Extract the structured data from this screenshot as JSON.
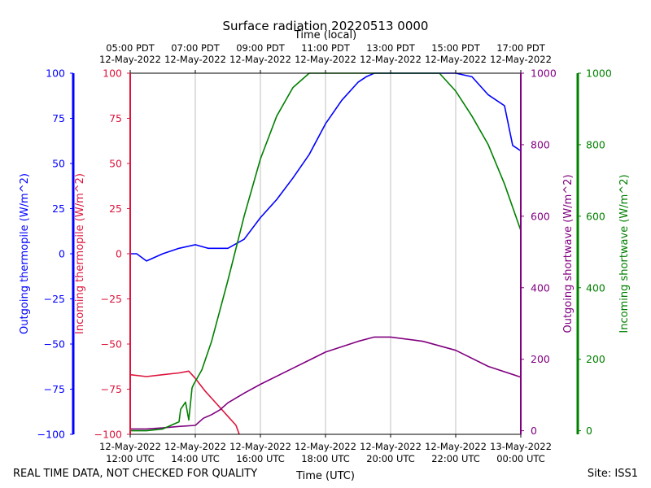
{
  "chart_data": {
    "type": "line",
    "title": "Surface radiation 20220513 0000",
    "top_axis_label": "Time (local)",
    "xlabel": "Time (UTC)",
    "x_unit": "hours UTC since 12-May-2022 12:00",
    "xlim": [
      0,
      12
    ],
    "x_ticks": [
      0,
      2,
      4,
      6,
      8,
      10,
      12
    ],
    "x_tick_labels_utc": [
      [
        "12-May-2022",
        "12:00 UTC"
      ],
      [
        "12-May-2022",
        "14:00 UTC"
      ],
      [
        "12-May-2022",
        "16:00 UTC"
      ],
      [
        "12-May-2022",
        "18:00 UTC"
      ],
      [
        "12-May-2022",
        "20:00 UTC"
      ],
      [
        "12-May-2022",
        "22:00 UTC"
      ],
      [
        "13-May-2022",
        "00:00 UTC"
      ]
    ],
    "x_tick_labels_local": [
      [
        "05:00 PDT",
        "12-May-2022"
      ],
      [
        "07:00 PDT",
        "12-May-2022"
      ],
      [
        "09:00 PDT",
        "12-May-2022"
      ],
      [
        "11:00 PDT",
        "12-May-2022"
      ],
      [
        "13:00 PDT",
        "12-May-2022"
      ],
      [
        "15:00 PDT",
        "12-May-2022"
      ],
      [
        "17:00 PDT",
        "12-May-2022"
      ]
    ],
    "grid": "vertical",
    "axes": {
      "outgoing_thermopile": {
        "label": "Outgoing thermopile (W/m^2)",
        "color": "#0000ff",
        "ylim": [
          -100,
          100
        ],
        "ticks": [
          "100",
          "75",
          "50",
          "25",
          "0",
          "−25",
          "−50",
          "−75",
          "−100"
        ]
      },
      "incoming_thermopile": {
        "label": "Incoming thermopile (W/m^2)",
        "color": "#dc143c",
        "ylim": [
          -100,
          100
        ],
        "ticks": [
          "100",
          "75",
          "50",
          "25",
          "0",
          "−25",
          "−50",
          "−75",
          "−100"
        ]
      },
      "outgoing_shortwave": {
        "label": "Outgoing shortwave (W/m^2)",
        "color": "#800080",
        "ylim": [
          -10,
          1000
        ],
        "ticks": [
          "1000",
          "800",
          "600",
          "400",
          "200",
          "0"
        ]
      },
      "incoming_shortwave": {
        "label": "Incoming shortwave (W/m^2)",
        "color": "#008000",
        "ylim": [
          -10,
          1000
        ],
        "ticks": [
          "1000",
          "800",
          "600",
          "400",
          "200",
          "0"
        ]
      }
    },
    "series": [
      {
        "name": "Outgoing thermopile",
        "axis": "outgoing_thermopile",
        "color": "#0000ff",
        "x": [
          0,
          0.2,
          0.5,
          1.0,
          1.5,
          2.0,
          2.4,
          3.0,
          3.5,
          4.0,
          4.5,
          5.0,
          5.5,
          6.0,
          6.5,
          7.0,
          7.25,
          7.5,
          8.0,
          8.5,
          9.0,
          9.5,
          10.0,
          10.5,
          11.0,
          11.5,
          11.75,
          12.0
        ],
        "y": [
          0,
          0,
          -4,
          0,
          3,
          5,
          3,
          3,
          8,
          20,
          30,
          42,
          55,
          72,
          85,
          95,
          98,
          100,
          100,
          100,
          100,
          100,
          100,
          98,
          88,
          82,
          60,
          57
        ]
      },
      {
        "name": "Incoming thermopile",
        "axis": "incoming_thermopile",
        "color": "#dc143c",
        "x": [
          0,
          0.5,
          1.0,
          1.5,
          1.8,
          2.0,
          2.3,
          2.6,
          3.0,
          3.25,
          3.35
        ],
        "y": [
          -67,
          -68,
          -67,
          -66,
          -65,
          -69,
          -76,
          -82,
          -90,
          -95,
          -100
        ]
      },
      {
        "name": "Outgoing shortwave",
        "axis": "outgoing_shortwave",
        "color": "#800080",
        "x": [
          0,
          0.5,
          1.0,
          1.5,
          2.0,
          2.25,
          2.5,
          2.75,
          3.0,
          3.5,
          4.0,
          5.0,
          6.0,
          7.0,
          7.5,
          8.0,
          9.0,
          10.0,
          11.0,
          12.0
        ],
        "y": [
          5,
          5,
          8,
          12,
          15,
          35,
          45,
          58,
          78,
          105,
          130,
          175,
          220,
          250,
          262,
          262,
          250,
          225,
          180,
          150
        ]
      },
      {
        "name": "Incoming shortwave",
        "axis": "incoming_shortwave",
        "color": "#008000",
        "x": [
          0,
          0.5,
          1.0,
          1.5,
          1.55,
          1.7,
          1.8,
          1.9,
          1.95,
          2.2,
          2.5,
          3.0,
          3.5,
          4.0,
          4.5,
          5.0,
          5.5,
          6.0,
          6.5,
          9.5,
          10.0,
          10.5,
          11.0,
          11.5,
          12.0
        ],
        "y": [
          0,
          0,
          5,
          25,
          60,
          80,
          30,
          120,
          130,
          170,
          250,
          420,
          600,
          760,
          880,
          960,
          1000,
          1000,
          1000,
          1000,
          950,
          880,
          800,
          690,
          560
        ]
      }
    ]
  },
  "footer": {
    "disclaimer": "REAL TIME DATA, NOT CHECKED FOR QUALITY",
    "site": "Site: ISS1"
  }
}
